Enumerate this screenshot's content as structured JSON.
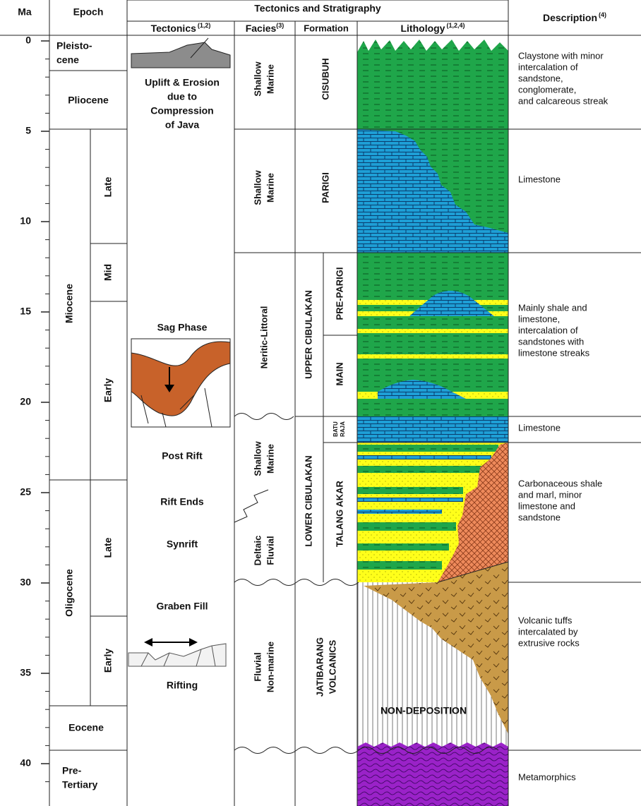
{
  "header": {
    "ma": "Ma",
    "epoch": "Epoch",
    "group": "Tectonics and Stratigraphy",
    "tectonics": "Tectonics",
    "tectonics_ref": "(1,2)",
    "facies": "Facies",
    "facies_ref": "(3)",
    "formation": "Formation",
    "lithology": "Lithology",
    "lithology_ref": "(1,2,4)",
    "description": "Description",
    "description_ref": "(4)"
  },
  "age_ticks": [
    0,
    5,
    10,
    15,
    20,
    25,
    30,
    35,
    40
  ],
  "epochs": {
    "pleistocene": [
      "Pleisto-",
      "cene"
    ],
    "pliocene": "Pliocene",
    "miocene": "Miocene",
    "miocene_late": "Late",
    "miocene_mid": "Mid",
    "miocene_early": "Early",
    "oligocene": "Oligocene",
    "oligocene_late": "Late",
    "oligocene_early": "Early",
    "eocene": "Eocene",
    "pre_tertiary": [
      "Pre-",
      "Tertiary"
    ]
  },
  "tectonics": {
    "uplift": [
      "Uplift & Erosion",
      "due to",
      "Compression",
      "of Java"
    ],
    "sag": "Sag Phase",
    "post_rift": "Post Rift",
    "rift_ends": "Rift Ends",
    "synrift": "Synrift",
    "graben_fill": "Graben Fill",
    "rifting": "Rifting"
  },
  "facies": {
    "cisubuh": [
      "Shallow",
      "Marine"
    ],
    "parigi": [
      "Shallow",
      "Marine"
    ],
    "upper_cibulakan": "Neritic-Littoral",
    "baturaja": [
      "Shallow",
      "Marine"
    ],
    "talang_akar": [
      "Deltaic",
      "Fluvial"
    ],
    "jatibarang": [
      "Fluvial",
      "Non-marine"
    ]
  },
  "formations": {
    "cisubuh": "CISUBUH",
    "parigi": "PARIGI",
    "upper_cibulakan": "UPPER CIBULAKAN",
    "pre_parigi": "PRE-PARIGI",
    "main": "MAIN",
    "batu_raja": [
      "BATU",
      "RAJA"
    ],
    "lower_cibulakan": "LOWER CIBULAKAN",
    "talang_akar": "TALANG AKAR",
    "jatibarang": [
      "JATIBARANG",
      "VOLCANICS"
    ]
  },
  "lithology": {
    "non_deposition": "NON-DEPOSITION"
  },
  "descriptions": {
    "cisubuh": [
      "Claystone with minor",
      "intercalation of",
      "sandstone,",
      "conglomerate,",
      "and calcareous streak"
    ],
    "parigi": [
      "Limestone"
    ],
    "upper_cibulakan": [
      "Mainly shale and",
      "limestone,",
      "intercalation of",
      "sandstones with",
      "limestone streaks"
    ],
    "batu_raja": [
      "Limestone"
    ],
    "talang_akar": [
      "Carbonaceous shale",
      "and marl, minor",
      "limestone and",
      "sandstone"
    ],
    "jatibarang": [
      "Volcanic tuffs",
      "intercalated by",
      "extrusive rocks"
    ],
    "basement": [
      "Metamorphics"
    ]
  }
}
